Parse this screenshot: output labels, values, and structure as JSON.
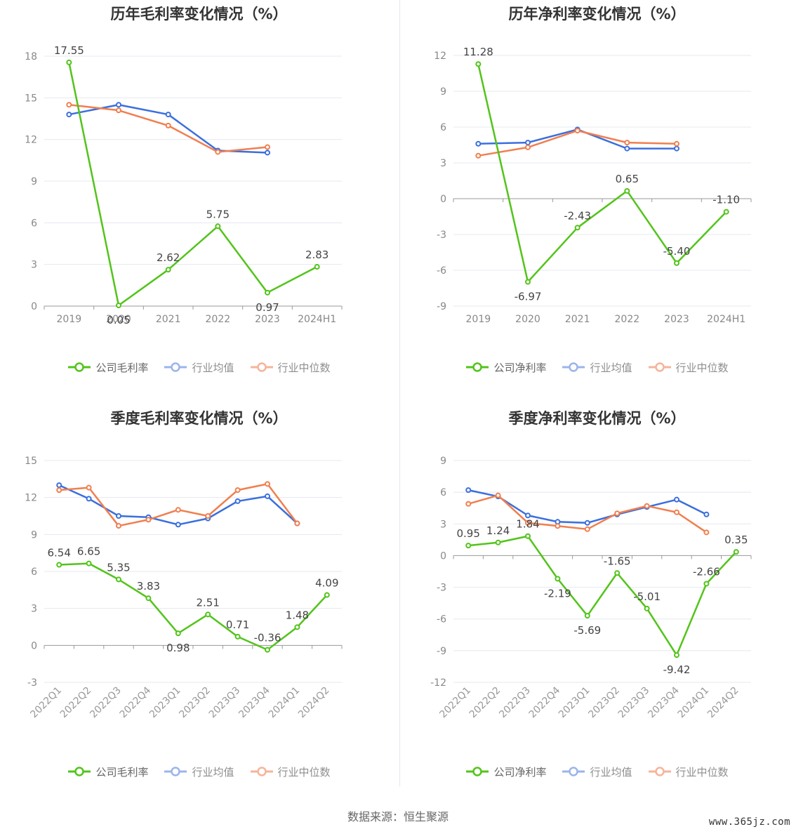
{
  "colors": {
    "company": "#52c41a",
    "avg": "#3a6fde",
    "median": "#f07f4f",
    "grid": "#e6e8ef",
    "axis": "#888888",
    "label": "#444444"
  },
  "charts": [
    {
      "title": "历年毛利率变化情况（%）",
      "legend": [
        "公司毛利率",
        "行业均值",
        "行业中位数"
      ],
      "chart_data": {
        "type": "line",
        "categories": [
          "2019",
          "2020",
          "2021",
          "2022",
          "2023",
          "2024H1"
        ],
        "yticks": [
          "18",
          "15",
          "12",
          "9",
          "6",
          "3",
          "0"
        ],
        "ylim": [
          0,
          18
        ],
        "series": [
          {
            "name": "公司毛利率",
            "values": [
              17.55,
              0.05,
              2.62,
              5.75,
              0.97,
              2.83
            ],
            "labels": [
              "17.55",
              "0.05",
              "2.62",
              "5.75",
              "0.97",
              "2.83"
            ]
          },
          {
            "name": "行业均值",
            "values": [
              13.8,
              14.5,
              13.8,
              11.2,
              11.05,
              null
            ]
          },
          {
            "name": "行业中位数",
            "values": [
              14.5,
              14.1,
              13.0,
              11.1,
              11.45,
              null
            ]
          }
        ],
        "grid": true,
        "legend_position": "bottom"
      }
    },
    {
      "title": "历年净利率变化情况（%）",
      "legend": [
        "公司净利率",
        "行业均值",
        "行业中位数"
      ],
      "chart_data": {
        "type": "line",
        "categories": [
          "2019",
          "2020",
          "2021",
          "2022",
          "2023",
          "2024H1"
        ],
        "yticks": [
          "12",
          "9",
          "6",
          "3",
          "0",
          "-3",
          "-6",
          "-9"
        ],
        "ylim": [
          -9,
          12
        ],
        "series": [
          {
            "name": "公司净利率",
            "values": [
              11.28,
              -6.97,
              -2.43,
              0.65,
              -5.4,
              -1.1
            ],
            "labels": [
              "11.28",
              "-6.97",
              "-2.43",
              "0.65",
              "-5.40",
              "-1.10"
            ]
          },
          {
            "name": "行业均值",
            "values": [
              4.6,
              4.7,
              5.8,
              4.2,
              4.2,
              null
            ]
          },
          {
            "name": "行业中位数",
            "values": [
              3.6,
              4.3,
              5.7,
              4.7,
              4.6,
              null
            ]
          }
        ],
        "grid": true,
        "legend_position": "bottom"
      }
    },
    {
      "title": "季度毛利率变化情况（%）",
      "legend": [
        "公司毛利率",
        "行业均值",
        "行业中位数"
      ],
      "chart_data": {
        "type": "line",
        "categories": [
          "2022Q1",
          "2022Q2",
          "2022Q3",
          "2022Q4",
          "2023Q1",
          "2023Q2",
          "2023Q3",
          "2023Q4",
          "2024Q1",
          "2024Q2"
        ],
        "yticks": [
          "15",
          "12",
          "9",
          "6",
          "3",
          "0",
          "-3"
        ],
        "ylim": [
          -3,
          15
        ],
        "series": [
          {
            "name": "公司毛利率",
            "values": [
              6.54,
              6.65,
              5.35,
              3.83,
              0.98,
              2.51,
              0.71,
              -0.36,
              1.48,
              4.09
            ],
            "labels": [
              "6.54",
              "6.65",
              "5.35",
              "3.83",
              "0.98",
              "2.51",
              "0.71",
              "-0.36",
              "1.48",
              "4.09"
            ]
          },
          {
            "name": "行业均值",
            "values": [
              13.0,
              11.9,
              10.5,
              10.4,
              9.8,
              10.3,
              11.7,
              12.1,
              9.9,
              null
            ]
          },
          {
            "name": "行业中位数",
            "values": [
              12.6,
              12.8,
              9.7,
              10.2,
              11.0,
              10.5,
              12.6,
              13.1,
              9.9,
              null
            ]
          }
        ],
        "grid": true,
        "legend_position": "bottom"
      }
    },
    {
      "title": "季度净利率变化情况（%）",
      "legend": [
        "公司净利率",
        "行业均值",
        "行业中位数"
      ],
      "chart_data": {
        "type": "line",
        "categories": [
          "2022Q1",
          "2022Q2",
          "2022Q3",
          "2022Q4",
          "2023Q1",
          "2023Q2",
          "2023Q3",
          "2023Q4",
          "2024Q1",
          "2024Q2"
        ],
        "yticks": [
          "9",
          "6",
          "3",
          "0",
          "-3",
          "-6",
          "-9",
          "-12"
        ],
        "ylim": [
          -12,
          9
        ],
        "series": [
          {
            "name": "公司净利率",
            "values": [
              0.95,
              1.24,
              1.84,
              -2.19,
              -5.69,
              -1.65,
              -5.01,
              -9.42,
              -2.66,
              0.35
            ],
            "labels": [
              "0.95",
              "1.24",
              "1.84",
              "-2.19",
              "-5.69",
              "-1.65",
              "-5.01",
              "-9.42",
              "-2.66",
              "0.35"
            ]
          },
          {
            "name": "行业均值",
            "values": [
              6.2,
              5.6,
              3.8,
              3.2,
              3.1,
              3.9,
              4.6,
              5.3,
              3.9,
              null
            ]
          },
          {
            "name": "行业中位数",
            "values": [
              4.9,
              5.7,
              3.1,
              2.8,
              2.5,
              4.0,
              4.7,
              4.1,
              2.2,
              null
            ]
          }
        ],
        "grid": true,
        "legend_position": "bottom"
      }
    }
  ],
  "footer": {
    "source": "数据来源：恒生聚源",
    "watermark": "www.365jz.com"
  }
}
